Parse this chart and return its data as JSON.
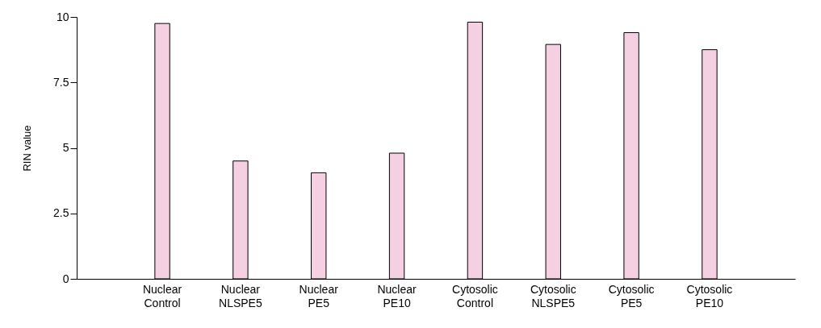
{
  "chart_data": {
    "type": "bar",
    "ylabel": "RIN value",
    "categories": [
      "Nuclear Control",
      "Nuclear NLSPE5",
      "Nuclear PE5",
      "Nuclear PE10",
      "Cytosolic Control",
      "Cytosolic NLSPE5",
      "Cytosolic PE5",
      "Cytosolic PE10"
    ],
    "values": [
      9.75,
      4.5,
      4.05,
      4.8,
      9.8,
      8.95,
      9.4,
      8.75
    ],
    "color": "#f4d0e2",
    "ylim": [
      0,
      10
    ],
    "yticks": [
      0,
      2.5,
      5,
      7.5,
      10
    ],
    "grid": false,
    "legend": false
  }
}
